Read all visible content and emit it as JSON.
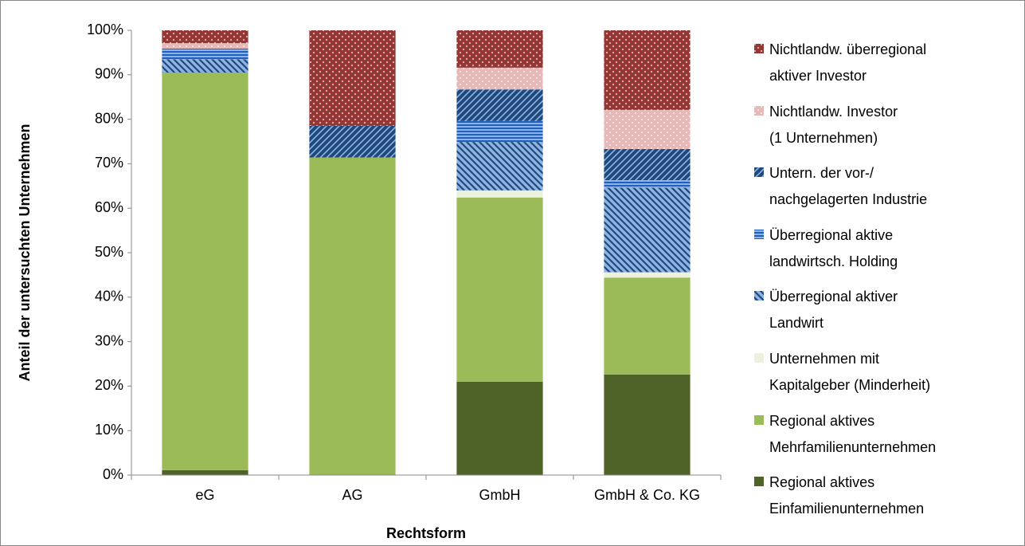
{
  "chart_data": {
    "type": "stacked_bar",
    "categories": [
      "eG",
      "AG",
      "GmbH",
      "GmbH & Co. KG"
    ],
    "xlabel": "Rechtsform",
    "ylabel": "Anteil der untersuchten Unternehmen",
    "ylim": [
      0,
      100
    ],
    "yticks": [
      {
        "value": 0,
        "label": "0%"
      },
      {
        "value": 10,
        "label": "10%"
      },
      {
        "value": 20,
        "label": "20%"
      },
      {
        "value": 30,
        "label": "30%"
      },
      {
        "value": 40,
        "label": "40%"
      },
      {
        "value": 50,
        "label": "50%"
      },
      {
        "value": 60,
        "label": "60%"
      },
      {
        "value": 70,
        "label": "70%"
      },
      {
        "value": 80,
        "label": "80%"
      },
      {
        "value": 90,
        "label": "90%"
      },
      {
        "value": 100,
        "label": "100%"
      }
    ],
    "legend": "right",
    "series": [
      {
        "name": "Regional aktives\nEinfamilienunternehmen",
        "color": "#4f6228",
        "pattern": null,
        "values": [
          1.1,
          0,
          21.0,
          22.6
        ]
      },
      {
        "name": "Regional aktives\nMehrfamilienunternehmen",
        "color": "#9bbb59",
        "pattern": null,
        "values": [
          89.4,
          71.4,
          41.4,
          21.8
        ]
      },
      {
        "name": "Unternehmen mit\nKapitalgeber (Minderheit)",
        "color": "#ebf1de",
        "pattern": null,
        "values": [
          0,
          0,
          1.6,
          1.2
        ]
      },
      {
        "name": "Überregional aktiver\nLandwirt",
        "color": "#8db3e2",
        "pattern": "diag-down",
        "values": [
          3.0,
          0,
          10.9,
          19.0
        ]
      },
      {
        "name": "Überregional aktive\nlandwirtsch. Holding",
        "color": "#8db3e2",
        "pattern": "horizontal",
        "values": [
          2.4,
          0,
          4.7,
          1.7
        ]
      },
      {
        "name": "Untern. der vor-/\nnachgelagerten Industrie",
        "color": "#1f497d",
        "pattern": "diag-up",
        "values": [
          0,
          7.1,
          7.1,
          7.0
        ]
      },
      {
        "name": "Nichtlandw. Investor\n(1 Unternehmen)",
        "color": "#e6b9b8",
        "pattern": "dots",
        "values": [
          1.2,
          0,
          4.9,
          8.8
        ]
      },
      {
        "name": "Nichtlandw. überregional\naktiver Investor",
        "color": "#953735",
        "pattern": "dots",
        "values": [
          2.9,
          21.5,
          8.4,
          17.9
        ]
      }
    ]
  }
}
